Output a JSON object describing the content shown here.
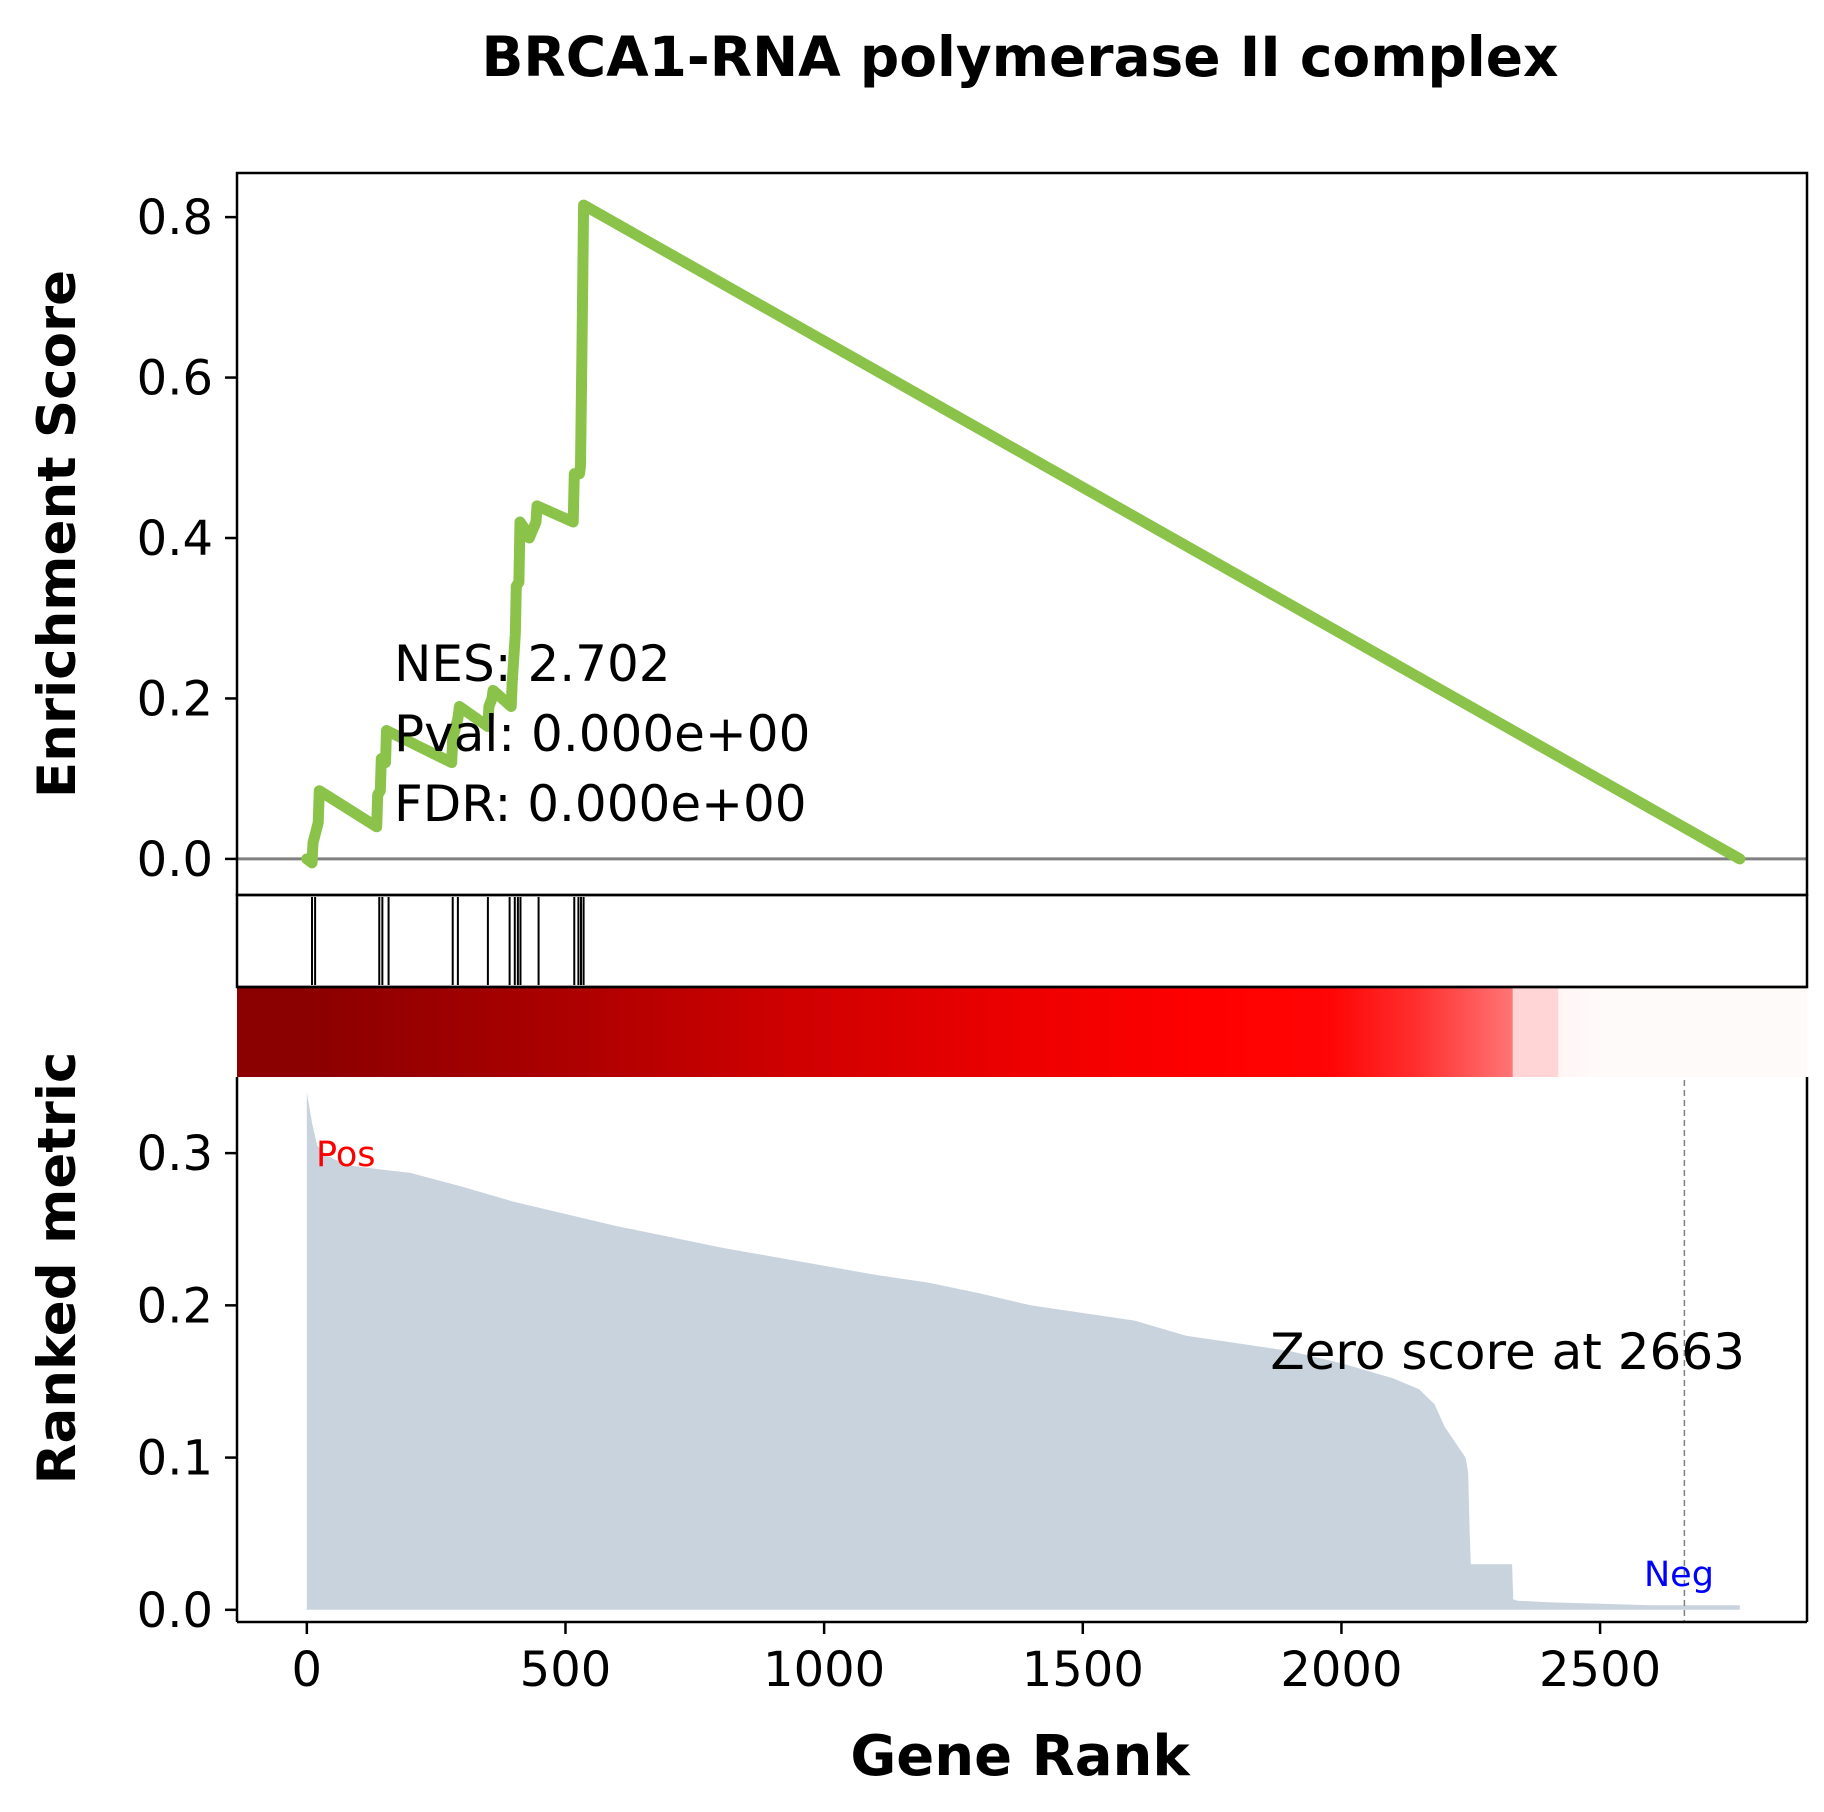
{
  "chart_data": {
    "type": "line",
    "title": "BRCA1-RNA polymerase II complex",
    "xlabel": "Gene Rank",
    "xlim": [
      -135,
      2900
    ],
    "xticks": [
      0,
      500,
      1000,
      1500,
      2000,
      2500
    ],
    "panels": {
      "enrichment": {
        "ylabel": "Enrichment Score",
        "ylim": [
          -0.045,
          0.855
        ],
        "yticks": [
          "0.0",
          "0.2",
          "0.4",
          "0.6",
          "0.8"
        ],
        "ytick_values": [
          0,
          0.2,
          0.4,
          0.6,
          0.8
        ],
        "line_color": "#8bc34a",
        "baseline_color": "#808080",
        "series": {
          "x": [
            0,
            10,
            12,
            22,
            24,
            135,
            137,
            142,
            144,
            152,
            154,
            280,
            282,
            292,
            295,
            350,
            352,
            358,
            360,
            395,
            397,
            403,
            405,
            410,
            412,
            428,
            430,
            443,
            445,
            515,
            517,
            527,
            529,
            532,
            535,
            2770
          ],
          "y": [
            0.0,
            -0.005,
            0.02,
            0.045,
            0.085,
            0.04,
            0.08,
            0.085,
            0.125,
            0.12,
            0.16,
            0.12,
            0.15,
            0.175,
            0.19,
            0.165,
            0.19,
            0.2,
            0.21,
            0.19,
            0.22,
            0.28,
            0.34,
            0.345,
            0.42,
            0.405,
            0.4,
            0.42,
            0.44,
            0.42,
            0.48,
            0.48,
            0.49,
            0.64,
            0.815,
            0.0
          ]
        },
        "stats": [
          "NES: 2.702",
          "Pval: 0.000e+00",
          "FDR: 0.000e+00"
        ]
      },
      "hits": [
        10,
        16,
        140,
        146,
        158,
        282,
        292,
        350,
        392,
        402,
        408,
        413,
        448,
        517,
        525,
        530,
        535
      ],
      "ranked_metric": {
        "ylabel": "Ranked metric",
        "ylim": [
          -0.008,
          0.35
        ],
        "yticks": [
          "0.0",
          "0.1",
          "0.2",
          "0.3"
        ],
        "ytick_values": [
          0,
          0.1,
          0.2,
          0.3
        ],
        "fill_color": "#c8d3dd",
        "x": [
          0,
          5,
          10,
          20,
          40,
          80,
          150,
          200,
          300,
          400,
          500,
          600,
          700,
          800,
          900,
          1000,
          1100,
          1200,
          1300,
          1400,
          1500,
          1600,
          1700,
          1800,
          1900,
          2000,
          2100,
          2150,
          2180,
          2200,
          2220,
          2240,
          2245,
          2248,
          2250,
          2330,
          2332,
          2340,
          2400,
          2500,
          2600,
          2700,
          2770
        ],
        "y": [
          0.34,
          0.33,
          0.32,
          0.305,
          0.298,
          0.292,
          0.289,
          0.287,
          0.278,
          0.268,
          0.26,
          0.252,
          0.245,
          0.238,
          0.232,
          0.226,
          0.22,
          0.215,
          0.208,
          0.2,
          0.195,
          0.19,
          0.18,
          0.175,
          0.17,
          0.162,
          0.152,
          0.145,
          0.135,
          0.12,
          0.11,
          0.1,
          0.09,
          0.05,
          0.03,
          0.03,
          0.007,
          0.006,
          0.005,
          0.004,
          0.003,
          0.003,
          0.003
        ],
        "pos_label": "Pos",
        "neg_label": "Neg",
        "zero_score_label": "Zero score at 2663",
        "zero_score_rank": 2663
      },
      "heat_bar": {
        "stops": [
          {
            "x": 0,
            "color": "#8b0000"
          },
          {
            "x": 450,
            "color": "#a80000"
          },
          {
            "x": 900,
            "color": "#cc0000"
          },
          {
            "x": 1400,
            "color": "#ee0000"
          },
          {
            "x": 1750,
            "color": "#ff0000"
          },
          {
            "x": 1980,
            "color": "#ff0505"
          },
          {
            "x": 2150,
            "color": "#ff3030"
          },
          {
            "x": 2330,
            "color": "#ff7575"
          },
          {
            "x": 2332,
            "color": "#ffd5d5"
          },
          {
            "x": 2418,
            "color": "#ffd5d5"
          },
          {
            "x": 2420,
            "color": "#fff5f5"
          },
          {
            "x": 2500,
            "color": "#fffafa"
          },
          {
            "x": 2900,
            "color": "#fffafa"
          }
        ]
      }
    }
  }
}
